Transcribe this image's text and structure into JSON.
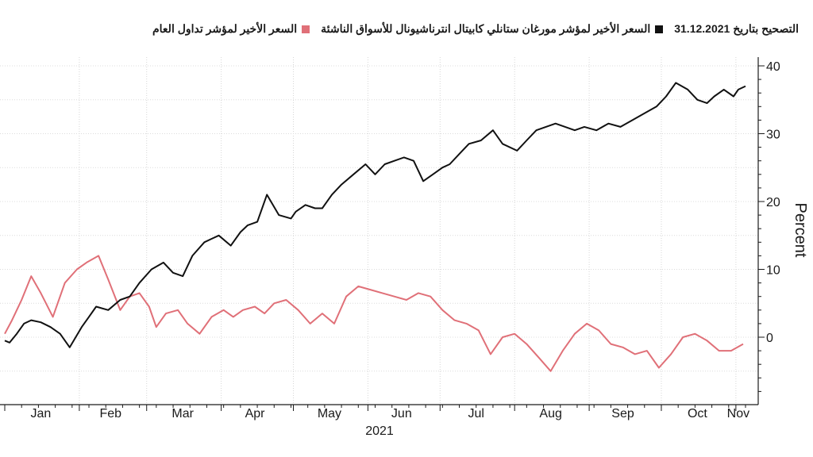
{
  "chart_data": {
    "type": "line",
    "legend": {
      "position": "top-right",
      "items": [
        {
          "label": "التصحيح بتاريخ 31.12.2021",
          "series": null
        },
        {
          "label": "السعر الأخير لمؤشر مورغان ستانلي كابيتال انترناشيونال للأسواق الناشئة",
          "series": 0
        },
        {
          "label": "السعر الأخير لمؤشر تداول العام",
          "series": 1
        }
      ]
    },
    "xlabel": "2021",
    "ylabel": "Percent",
    "ylim": [
      -10,
      40
    ],
    "yticks": [
      0,
      10,
      20,
      30,
      40
    ],
    "grid": true,
    "x_months": [
      "Jan",
      "Feb",
      "Mar",
      "Apr",
      "May",
      "Jun",
      "Jul",
      "Aug",
      "Sep",
      "Oct",
      "Nov"
    ],
    "series": [
      {
        "name": "السعر الأخير لمؤشر مورغان ستانلي كابيتال انترناشيونال للأسواق الناشئة",
        "color": "#111111",
        "x": [
          "2021-01-01",
          "2021-01-03",
          "2021-01-06",
          "2021-01-09",
          "2021-01-12",
          "2021-01-16",
          "2021-01-20",
          "2021-01-24",
          "2021-01-28",
          "2021-02-02",
          "2021-02-05",
          "2021-02-08",
          "2021-02-13",
          "2021-02-18",
          "2021-02-22",
          "2021-02-26",
          "2021-03-03",
          "2021-03-08",
          "2021-03-12",
          "2021-03-16",
          "2021-03-20",
          "2021-03-25",
          "2021-03-28",
          "2021-03-31",
          "2021-04-05",
          "2021-04-09",
          "2021-04-12",
          "2021-04-16",
          "2021-04-20",
          "2021-04-25",
          "2021-04-30",
          "2021-05-02",
          "2021-05-06",
          "2021-05-10",
          "2021-05-13",
          "2021-05-17",
          "2021-05-21",
          "2021-05-26",
          "2021-05-31",
          "2021-06-04",
          "2021-06-08",
          "2021-06-12",
          "2021-06-16",
          "2021-06-20",
          "2021-06-24",
          "2021-06-28",
          "2021-07-02",
          "2021-07-05",
          "2021-07-09",
          "2021-07-13",
          "2021-07-18",
          "2021-07-23",
          "2021-07-27",
          "2021-08-02",
          "2021-08-06",
          "2021-08-10",
          "2021-08-14",
          "2021-08-18",
          "2021-08-22",
          "2021-08-26",
          "2021-08-30",
          "2021-09-04",
          "2021-09-09",
          "2021-09-14",
          "2021-09-19",
          "2021-09-24",
          "2021-09-29",
          "2021-10-03",
          "2021-10-07",
          "2021-10-12",
          "2021-10-16",
          "2021-10-20",
          "2021-10-23",
          "2021-10-27",
          "2021-10-31",
          "2021-11-02",
          "2021-11-05"
        ],
        "y": [
          -0.5,
          -0.8,
          0.5,
          2.0,
          2.5,
          2.2,
          1.5,
          0.5,
          -1.5,
          1.5,
          3.0,
          4.5,
          4.0,
          5.5,
          6.0,
          8.0,
          10.0,
          11.0,
          9.5,
          9.0,
          12.0,
          14.0,
          14.5,
          15.0,
          13.5,
          15.5,
          16.5,
          17.0,
          21.0,
          18.0,
          17.5,
          18.5,
          19.5,
          19.0,
          19.0,
          21.0,
          22.5,
          24.0,
          25.5,
          24.0,
          25.5,
          26.0,
          26.5,
          26.0,
          23.0,
          24.0,
          25.0,
          25.5,
          27.0,
          28.5,
          29.0,
          30.5,
          28.5,
          27.5,
          29.0,
          30.5,
          31.0,
          31.5,
          31.0,
          30.5,
          31.0,
          30.5,
          31.5,
          31.0,
          32.0,
          33.0,
          34.0,
          35.5,
          37.5,
          36.5,
          35.0,
          34.5,
          35.5,
          36.5,
          35.5,
          36.5,
          37.0
        ]
      },
      {
        "name": "السعر الأخير لمؤشر تداول العام",
        "color": "#e07078",
        "x": [
          "2021-01-01",
          "2021-01-04",
          "2021-01-08",
          "2021-01-12",
          "2021-01-16",
          "2021-01-21",
          "2021-01-26",
          "2021-01-31",
          "2021-02-04",
          "2021-02-09",
          "2021-02-13",
          "2021-02-18",
          "2021-02-22",
          "2021-02-26",
          "2021-03-02",
          "2021-03-05",
          "2021-03-09",
          "2021-03-14",
          "2021-03-18",
          "2021-03-23",
          "2021-03-28",
          "2021-04-02",
          "2021-04-06",
          "2021-04-10",
          "2021-04-15",
          "2021-04-19",
          "2021-04-23",
          "2021-04-28",
          "2021-05-03",
          "2021-05-08",
          "2021-05-13",
          "2021-05-18",
          "2021-05-23",
          "2021-05-28",
          "2021-06-02",
          "2021-06-07",
          "2021-06-12",
          "2021-06-17",
          "2021-06-22",
          "2021-06-27",
          "2021-07-02",
          "2021-07-07",
          "2021-07-12",
          "2021-07-17",
          "2021-07-22",
          "2021-07-27",
          "2021-08-01",
          "2021-08-06",
          "2021-08-11",
          "2021-08-16",
          "2021-08-21",
          "2021-08-26",
          "2021-08-31",
          "2021-09-05",
          "2021-09-10",
          "2021-09-15",
          "2021-09-20",
          "2021-09-25",
          "2021-09-30",
          "2021-10-05",
          "2021-10-10",
          "2021-10-15",
          "2021-10-20",
          "2021-10-25",
          "2021-10-30",
          "2021-11-04"
        ],
        "y": [
          0.5,
          2.5,
          5.5,
          9.0,
          6.5,
          3.0,
          8.0,
          10.0,
          11.0,
          12.0,
          8.5,
          4.0,
          6.0,
          6.5,
          4.5,
          1.5,
          3.5,
          4.0,
          2.0,
          0.5,
          3.0,
          4.0,
          3.0,
          4.0,
          4.5,
          3.5,
          5.0,
          5.5,
          4.0,
          2.0,
          3.5,
          2.0,
          6.0,
          7.5,
          7.0,
          6.5,
          6.0,
          5.5,
          6.5,
          6.0,
          4.0,
          2.5,
          2.0,
          1.0,
          -2.5,
          0.0,
          0.5,
          -1.0,
          -3.0,
          -5.0,
          -2.0,
          0.5,
          2.0,
          1.0,
          -1.0,
          -1.5,
          -2.5,
          -2.0,
          -4.5,
          -2.5,
          0.0,
          0.5,
          -0.5,
          -2.0,
          -2.0,
          -1.0
        ]
      }
    ]
  }
}
